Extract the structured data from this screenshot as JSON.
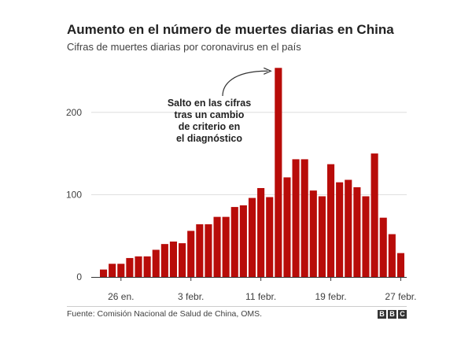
{
  "chart_data": {
    "type": "bar",
    "title": "Aumento en el número de muertes diarias en China",
    "subtitle": "Cifras de muertes diarias por coronavirus en el país",
    "x_tick_labels": [
      "26 en.",
      "3 febr.",
      "11 febr.",
      "19 febr.",
      "27 febr."
    ],
    "y_ticks": [
      0,
      100,
      200
    ],
    "ylim": [
      0,
      260
    ],
    "grid": true,
    "values": [
      9,
      16,
      16,
      23,
      25,
      25,
      33,
      40,
      43,
      41,
      56,
      64,
      64,
      73,
      73,
      85,
      87,
      96,
      108,
      97,
      254,
      121,
      143,
      143,
      105,
      98,
      137,
      115,
      118,
      109,
      98,
      150,
      72,
      52,
      29
    ],
    "bar_color": "#b80c09",
    "annotation": {
      "lines": [
        "Salto en las cifras",
        "tras un cambio",
        "de criterio en",
        "el diagnóstico"
      ]
    }
  },
  "footer": {
    "source": "Fuente: Comisión Nacional de Salud de China, OMS.",
    "logo_letters": [
      "B",
      "B",
      "C"
    ]
  }
}
